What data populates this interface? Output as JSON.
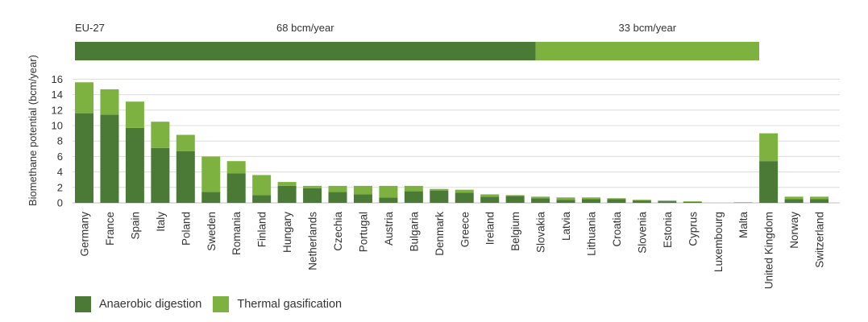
{
  "chart_data": {
    "type": "bar",
    "stacked": true,
    "ylabel": "Biomethane potential (bcm/year)",
    "xlabel": "",
    "ylim": [
      0,
      16
    ],
    "yticks": [
      0,
      2,
      4,
      6,
      8,
      10,
      12,
      14,
      16
    ],
    "grid": true,
    "categories": [
      "Germany",
      "France",
      "Spain",
      "Italy",
      "Poland",
      "Sweden",
      "Romania",
      "Finland",
      "Hungary",
      "Netherlands",
      "Czechia",
      "Portugal",
      "Austria",
      "Bulgaria",
      "Denmark",
      "Greece",
      "Ireland",
      "Belgium",
      "Slovakia",
      "Latvia",
      "Lithuania",
      "Croatia",
      "Slovenia",
      "Estonia",
      "Cyprus",
      "Luxembourg",
      "Malta",
      "United Kingdom",
      "Norway",
      "Switzerland"
    ],
    "series": [
      {
        "name": "Anaerobic digestion",
        "color": "#4a7a36",
        "values": [
          11.6,
          11.4,
          9.7,
          7.1,
          6.7,
          1.4,
          3.8,
          1.0,
          2.2,
          1.9,
          1.4,
          1.1,
          0.7,
          1.5,
          1.6,
          1.3,
          0.8,
          0.9,
          0.6,
          0.4,
          0.5,
          0.5,
          0.3,
          0.2,
          0.1,
          0.0,
          0.05,
          5.4,
          0.5,
          0.5
        ]
      },
      {
        "name": "Thermal gasification",
        "color": "#7db240",
        "values": [
          4.0,
          3.3,
          3.4,
          3.4,
          2.1,
          4.6,
          1.6,
          2.6,
          0.5,
          0.3,
          0.8,
          1.1,
          1.5,
          0.7,
          0.2,
          0.4,
          0.3,
          0.1,
          0.2,
          0.3,
          0.2,
          0.1,
          0.1,
          0.1,
          0.1,
          0.0,
          0.0,
          3.6,
          0.3,
          0.3
        ]
      }
    ],
    "summary_bar": {
      "label": "EU-27",
      "segments": [
        {
          "label": "68 bcm/year",
          "value": 68,
          "color": "#4a7a36"
        },
        {
          "label": "33 bcm/year",
          "value": 33,
          "color": "#7db240"
        }
      ]
    },
    "legend_position": "bottom-left"
  }
}
